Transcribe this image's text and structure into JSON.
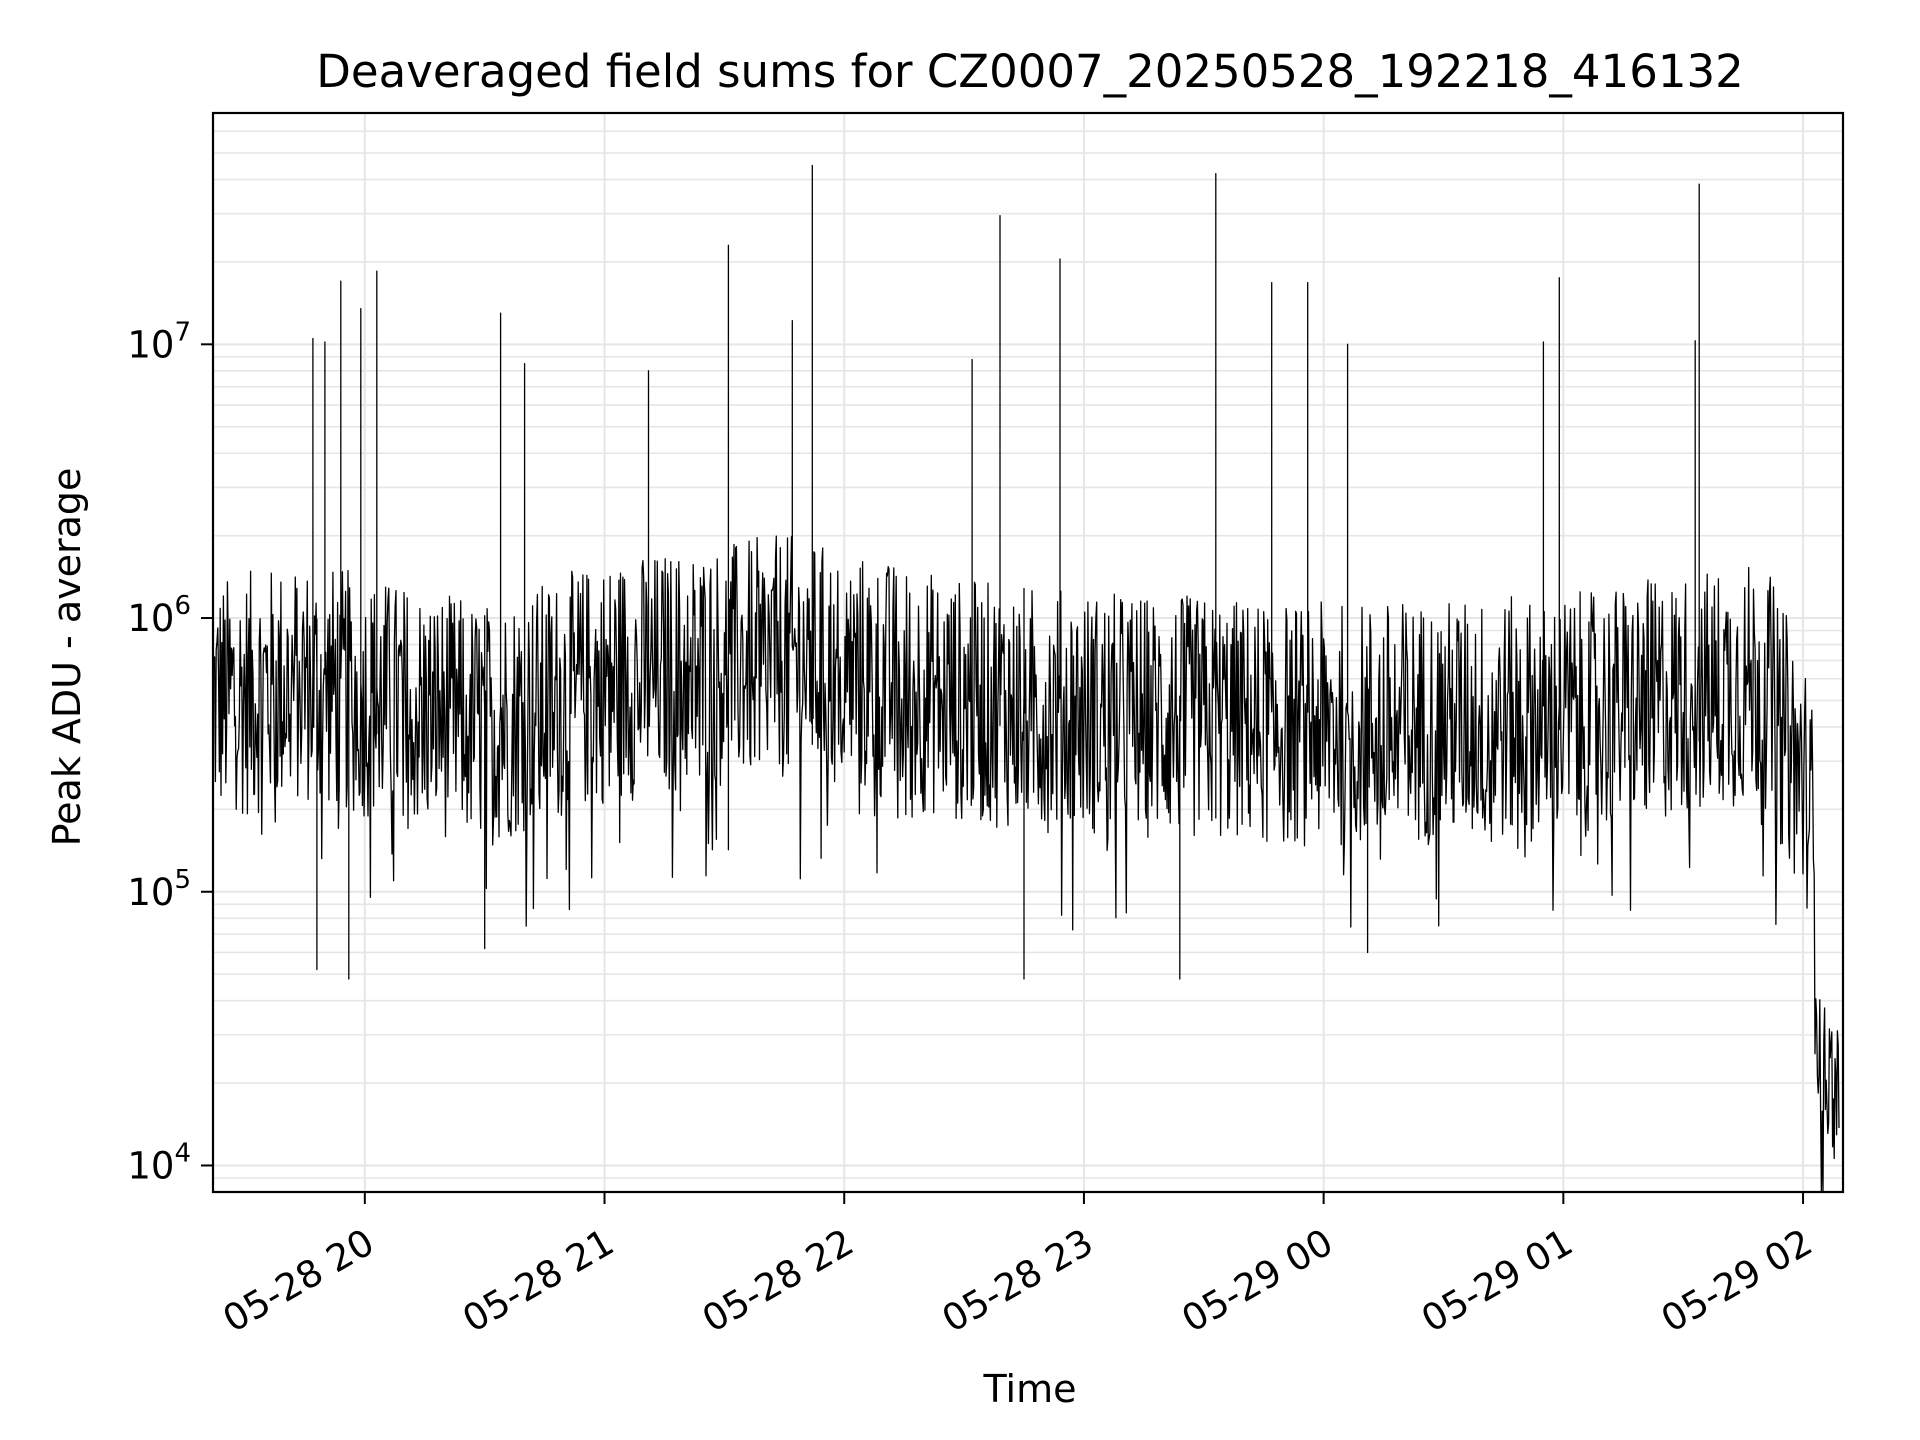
{
  "chart_data": {
    "type": "line",
    "title": "Deaveraged field sums for CZ0007_20250528_192218_416132",
    "xlabel": "Time",
    "ylabel": "Peak ADU - average",
    "y_scale": "log",
    "ylim": [
      8000,
      70000000
    ],
    "xlim": [
      "2025-05-28 19:22",
      "2025-05-29 02:10"
    ],
    "grid": true,
    "line_color": "#000000",
    "grid_color": "#e6e6e6",
    "x_ticks": [
      {
        "t": "2025-05-28 20:00",
        "label": "05-28 20"
      },
      {
        "t": "2025-05-28 21:00",
        "label": "05-28 21"
      },
      {
        "t": "2025-05-28 22:00",
        "label": "05-28 22"
      },
      {
        "t": "2025-05-28 23:00",
        "label": "05-28 23"
      },
      {
        "t": "2025-05-29 00:00",
        "label": "05-29 00"
      },
      {
        "t": "2025-05-29 01:00",
        "label": "05-29 01"
      },
      {
        "t": "2025-05-29 02:00",
        "label": "05-29 02"
      }
    ],
    "y_ticks": [
      {
        "value": 10000,
        "base": "10",
        "exp": "4"
      },
      {
        "value": 100000,
        "base": "10",
        "exp": "5"
      },
      {
        "value": 1000000,
        "base": "10",
        "exp": "6"
      },
      {
        "value": 10000000,
        "base": "10",
        "exp": "7"
      }
    ],
    "series": [
      {
        "style": "noisy-timeseries",
        "baseline": [
          {
            "t": "2025-05-28 19:22",
            "y": 550000
          },
          {
            "t": "2025-05-28 19:45",
            "y": 650000
          },
          {
            "t": "2025-05-28 20:30",
            "y": 450000
          },
          {
            "t": "2025-05-28 21:00",
            "y": 650000
          },
          {
            "t": "2025-05-28 21:45",
            "y": 800000
          },
          {
            "t": "2025-05-28 22:30",
            "y": 550000
          },
          {
            "t": "2025-05-28 23:00",
            "y": 500000
          },
          {
            "t": "2025-05-29 00:00",
            "y": 450000
          },
          {
            "t": "2025-05-29 01:00",
            "y": 480000
          },
          {
            "t": "2025-05-29 01:50",
            "y": 650000
          },
          {
            "t": "2025-05-29 02:02",
            "y": 250000
          },
          {
            "t": "2025-05-29 02:04",
            "y": 25000
          },
          {
            "t": "2025-05-29 02:09",
            "y": 20000
          }
        ],
        "spikes": [
          {
            "t": "2025-05-28 19:47",
            "y": 10500000
          },
          {
            "t": "2025-05-28 19:50",
            "y": 10200000
          },
          {
            "t": "2025-05-28 19:54",
            "y": 17000000
          },
          {
            "t": "2025-05-28 19:59",
            "y": 13500000
          },
          {
            "t": "2025-05-28 20:03",
            "y": 18500000
          },
          {
            "t": "2025-05-28 20:34",
            "y": 13000000
          },
          {
            "t": "2025-05-28 20:40",
            "y": 8500000
          },
          {
            "t": "2025-05-28 21:11",
            "y": 8000000
          },
          {
            "t": "2025-05-28 21:31",
            "y": 23000000
          },
          {
            "t": "2025-05-28 21:47",
            "y": 12200000
          },
          {
            "t": "2025-05-28 21:52",
            "y": 45000000
          },
          {
            "t": "2025-05-28 22:32",
            "y": 8800000
          },
          {
            "t": "2025-05-28 22:39",
            "y": 29500000
          },
          {
            "t": "2025-05-28 22:54",
            "y": 20500000
          },
          {
            "t": "2025-05-28 23:33",
            "y": 42000000
          },
          {
            "t": "2025-05-28 23:47",
            "y": 16800000
          },
          {
            "t": "2025-05-28 23:56",
            "y": 16800000
          },
          {
            "t": "2025-05-29 00:06",
            "y": 10000000
          },
          {
            "t": "2025-05-29 00:55",
            "y": 10200000
          },
          {
            "t": "2025-05-29 00:59",
            "y": 17500000
          },
          {
            "t": "2025-05-29 01:33",
            "y": 10300000
          },
          {
            "t": "2025-05-29 01:34",
            "y": 38500000
          }
        ],
        "dips": [
          {
            "t": "2025-05-28 19:48",
            "y": 52000
          },
          {
            "t": "2025-05-28 19:56",
            "y": 48000
          },
          {
            "t": "2025-05-28 20:30",
            "y": 62000
          },
          {
            "t": "2025-05-28 22:45",
            "y": 48000
          },
          {
            "t": "2025-05-28 23:24",
            "y": 48000
          },
          {
            "t": "2025-05-29 00:11",
            "y": 60000
          }
        ]
      }
    ]
  }
}
